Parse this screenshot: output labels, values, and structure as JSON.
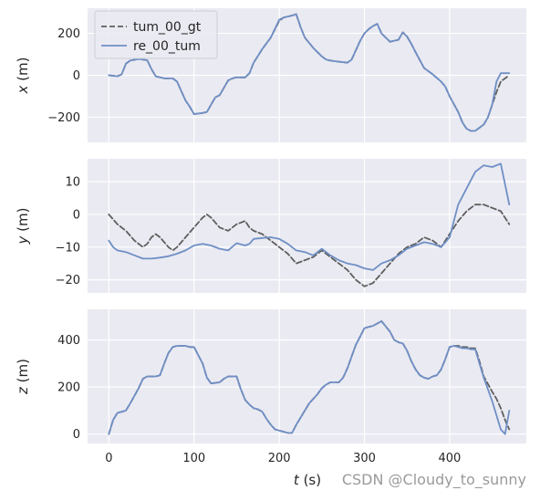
{
  "chart_data": {
    "type": "line",
    "xlabel_italic": "t",
    "xlabel_unit": " (s)",
    "xlim": [
      -25,
      490
    ],
    "xticks": [
      0,
      100,
      200,
      300,
      400
    ],
    "legend": {
      "placement": "top-left",
      "entries": [
        "tum_00_gt",
        "re_00_tum"
      ]
    },
    "colors": {
      "gt": "#5f5f5f",
      "est": "#6f8fc5",
      "panel_bg": "#eaeaf2",
      "grid": "#ffffff"
    },
    "grid": true,
    "watermark": "CSDN @Cloudy_to_sunny",
    "panels": [
      {
        "ylabel_italic": "x",
        "ylabel_unit": " (m)",
        "ylim": [
          -320,
          320
        ],
        "yticks": [
          -200,
          0,
          200
        ],
        "series": [
          {
            "name": "tum_00_gt",
            "style": "dashed",
            "x": [
              0,
              10,
              15,
              20,
              25,
              35,
              45,
              50,
              55,
              60,
              65,
              75,
              80,
              85,
              90,
              95,
              100,
              110,
              115,
              120,
              125,
              130,
              135,
              140,
              145,
              150,
              160,
              165,
              170,
              180,
              190,
              200,
              205,
              215,
              220,
              225,
              230,
              240,
              250,
              255,
              260,
              270,
              280,
              285,
              290,
              295,
              300,
              305,
              310,
              315,
              320,
              330,
              340,
              345,
              350,
              355,
              360,
              370,
              380,
              390,
              395,
              400,
              410,
              415,
              420,
              425,
              430,
              440,
              445,
              450,
              455,
              460,
              470
            ],
            "y": [
              0,
              -5,
              5,
              55,
              70,
              78,
              72,
              30,
              -5,
              -10,
              -15,
              -15,
              -30,
              -75,
              -120,
              -150,
              -185,
              -180,
              -175,
              -140,
              -105,
              -95,
              -60,
              -25,
              -15,
              -10,
              -10,
              10,
              60,
              125,
              180,
              260,
              275,
              285,
              290,
              230,
              180,
              130,
              90,
              75,
              70,
              65,
              60,
              75,
              120,
              165,
              200,
              220,
              235,
              245,
              200,
              160,
              170,
              205,
              185,
              150,
              110,
              35,
              5,
              -30,
              -55,
              -100,
              -175,
              -225,
              -255,
              -265,
              -265,
              -235,
              -200,
              -140,
              -80,
              -30,
              0
            ]
          },
          {
            "name": "re_00_tum",
            "style": "solid",
            "x": [
              0,
              10,
              15,
              20,
              25,
              35,
              45,
              50,
              55,
              60,
              65,
              75,
              80,
              85,
              90,
              95,
              100,
              110,
              115,
              120,
              125,
              130,
              135,
              140,
              145,
              150,
              160,
              165,
              170,
              180,
              190,
              200,
              205,
              215,
              220,
              225,
              230,
              240,
              250,
              255,
              260,
              270,
              280,
              285,
              290,
              295,
              300,
              305,
              310,
              315,
              320,
              330,
              340,
              345,
              350,
              355,
              360,
              370,
              380,
              390,
              395,
              400,
              410,
              415,
              420,
              425,
              430,
              440,
              445,
              450,
              455,
              460,
              470
            ],
            "y": [
              0,
              -5,
              5,
              55,
              70,
              78,
              72,
              30,
              -5,
              -10,
              -15,
              -15,
              -30,
              -75,
              -120,
              -150,
              -185,
              -180,
              -175,
              -140,
              -105,
              -95,
              -60,
              -25,
              -15,
              -10,
              -10,
              10,
              60,
              125,
              180,
              265,
              275,
              285,
              292,
              230,
              180,
              130,
              90,
              75,
              70,
              65,
              60,
              75,
              120,
              165,
              200,
              220,
              235,
              245,
              200,
              160,
              170,
              205,
              185,
              150,
              110,
              35,
              5,
              -30,
              -55,
              -100,
              -175,
              -225,
              -255,
              -265,
              -265,
              -235,
              -200,
              -140,
              -30,
              10,
              10
            ]
          }
        ]
      },
      {
        "ylabel_italic": "y",
        "ylabel_unit": " (m)",
        "ylim": [
          -24,
          17
        ],
        "yticks": [
          -20,
          -10,
          0,
          10
        ],
        "series": [
          {
            "name": "tum_00_gt",
            "style": "dashed",
            "x": [
              0,
              10,
              20,
              30,
              40,
              45,
              50,
              55,
              60,
              70,
              75,
              80,
              90,
              100,
              110,
              115,
              120,
              130,
              140,
              150,
              160,
              165,
              170,
              180,
              190,
              200,
              210,
              220,
              230,
              240,
              250,
              260,
              270,
              280,
              290,
              300,
              310,
              320,
              330,
              340,
              350,
              360,
              370,
              380,
              390,
              400,
              410,
              420,
              430,
              440,
              450,
              460,
              470
            ],
            "y": [
              0,
              -3,
              -5,
              -8,
              -10,
              -9,
              -7,
              -6,
              -7,
              -10,
              -11,
              -10,
              -7,
              -4,
              -1,
              0,
              -1,
              -4,
              -5,
              -3,
              -2,
              -4,
              -5,
              -6,
              -8,
              -10,
              -12,
              -15,
              -14,
              -13,
              -11,
              -13,
              -15,
              -17,
              -20,
              -22,
              -21,
              -18,
              -15,
              -12,
              -10,
              -9,
              -7,
              -8,
              -10,
              -6,
              -2,
              1,
              3,
              3,
              2,
              1,
              -3
            ]
          },
          {
            "name": "re_00_tum",
            "style": "solid",
            "x": [
              0,
              5,
              10,
              20,
              30,
              40,
              50,
              60,
              70,
              80,
              90,
              100,
              110,
              120,
              130,
              140,
              150,
              160,
              165,
              170,
              180,
              190,
              200,
              210,
              220,
              230,
              240,
              250,
              260,
              270,
              280,
              290,
              300,
              310,
              320,
              330,
              340,
              350,
              360,
              370,
              380,
              390,
              400,
              410,
              420,
              430,
              440,
              450,
              460,
              470
            ],
            "y": [
              -8,
              -10,
              -11,
              -11.5,
              -12.5,
              -13.5,
              -13.5,
              -13.2,
              -12.8,
              -12,
              -11,
              -9.5,
              -9,
              -9.5,
              -10.5,
              -11,
              -8.8,
              -9.5,
              -9,
              -7.5,
              -7.2,
              -7,
              -7.5,
              -9,
              -11,
              -11.5,
              -12.5,
              -10.5,
              -12.5,
              -14,
              -15,
              -15.5,
              -16.5,
              -17,
              -15,
              -14,
              -12.5,
              -10.5,
              -9.5,
              -8.5,
              -9,
              -10,
              -7,
              3,
              8,
              13,
              15,
              14.5,
              15.5,
              3
            ]
          }
        ]
      },
      {
        "ylabel_italic": "z",
        "ylabel_unit": " (m)",
        "ylim": [
          -40,
          530
        ],
        "yticks": [
          0,
          200,
          400
        ],
        "series": [
          {
            "name": "tum_00_gt",
            "style": "dashed",
            "x": [
              0,
              5,
              10,
              15,
              20,
              25,
              35,
              40,
              45,
              55,
              60,
              65,
              70,
              75,
              80,
              90,
              95,
              100,
              110,
              115,
              120,
              130,
              135,
              140,
              145,
              150,
              155,
              160,
              165,
              170,
              175,
              180,
              185,
              190,
              195,
              200,
              210,
              215,
              220,
              230,
              235,
              240,
              245,
              250,
              255,
              260,
              270,
              275,
              280,
              285,
              290,
              295,
              300,
              305,
              310,
              315,
              320,
              330,
              335,
              340,
              345,
              350,
              355,
              360,
              365,
              370,
              375,
              380,
              385,
              390,
              395,
              400,
              405,
              410,
              415,
              420,
              425,
              430,
              435,
              440,
              450,
              455,
              460,
              465,
              470
            ],
            "y": [
              0,
              60,
              90,
              95,
              100,
              130,
              195,
              235,
              245,
              245,
              250,
              300,
              345,
              370,
              375,
              375,
              370,
              370,
              300,
              240,
              215,
              220,
              235,
              245,
              245,
              245,
              190,
              145,
              125,
              110,
              105,
              95,
              65,
              40,
              20,
              15,
              5,
              5,
              40,
              100,
              130,
              150,
              170,
              195,
              210,
              220,
              220,
              240,
              280,
              330,
              380,
              415,
              450,
              455,
              460,
              470,
              480,
              435,
              400,
              390,
              385,
              355,
              310,
              275,
              250,
              240,
              235,
              245,
              250,
              275,
              320,
              370,
              375,
              375,
              370,
              370,
              365,
              365,
              310,
              245,
              180,
              150,
              110,
              60,
              20
            ],
            "tail_x": [
              440,
              450,
              455,
              460,
              465,
              470
            ],
            "tail_y": [
              245,
              180,
              150,
              110,
              60,
              20
            ]
          },
          {
            "name": "re_00_tum",
            "style": "solid",
            "x": [
              0,
              5,
              10,
              15,
              20,
              25,
              35,
              40,
              45,
              55,
              60,
              65,
              70,
              75,
              80,
              90,
              95,
              100,
              110,
              115,
              120,
              130,
              135,
              140,
              145,
              150,
              155,
              160,
              165,
              170,
              175,
              180,
              185,
              190,
              195,
              200,
              210,
              215,
              220,
              230,
              235,
              240,
              245,
              250,
              255,
              260,
              270,
              275,
              280,
              285,
              290,
              295,
              300,
              305,
              310,
              315,
              320,
              330,
              335,
              340,
              345,
              350,
              355,
              360,
              365,
              370,
              375,
              380,
              385,
              390,
              395,
              400,
              405,
              410,
              415,
              420,
              425,
              430,
              435,
              440,
              450,
              455,
              460,
              465,
              470
            ],
            "y": [
              0,
              60,
              90,
              95,
              100,
              130,
              195,
              235,
              245,
              245,
              250,
              300,
              345,
              370,
              375,
              375,
              370,
              370,
              300,
              240,
              215,
              220,
              235,
              245,
              245,
              245,
              190,
              145,
              125,
              110,
              105,
              95,
              65,
              40,
              20,
              15,
              5,
              5,
              40,
              100,
              130,
              150,
              170,
              195,
              210,
              220,
              220,
              240,
              280,
              330,
              380,
              415,
              450,
              455,
              460,
              470,
              480,
              435,
              400,
              390,
              385,
              355,
              310,
              275,
              250,
              240,
              235,
              245,
              250,
              275,
              320,
              370,
              375,
              370,
              365,
              365,
              360,
              360,
              300,
              240,
              140,
              80,
              20,
              0,
              100
            ]
          }
        ]
      }
    ]
  }
}
